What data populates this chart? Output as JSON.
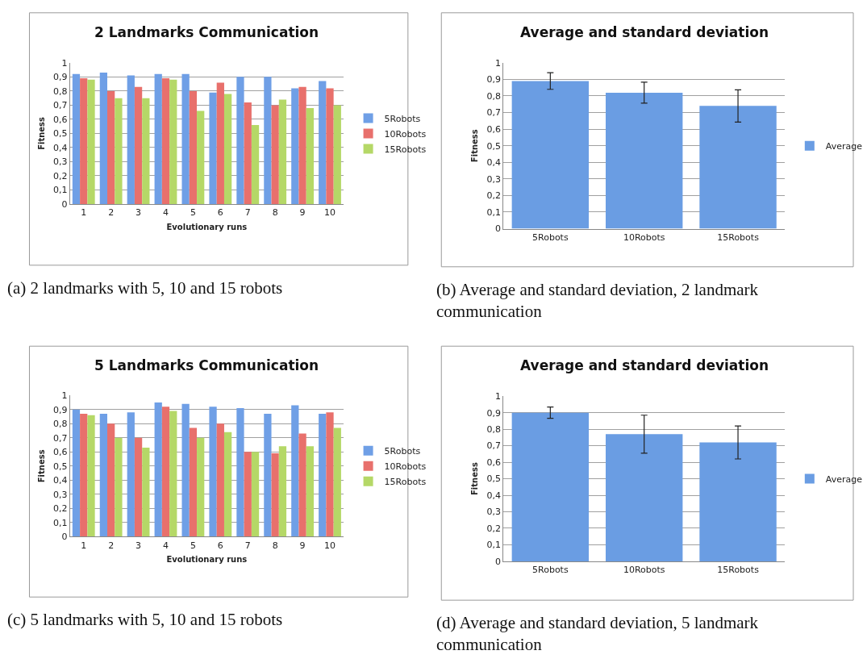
{
  "chart_data": [
    {
      "type": "bar",
      "title": "2 Landmarks Communication",
      "xlabel": "Evolutionary runs",
      "ylabel": "Fitness",
      "categories": [
        "1",
        "2",
        "3",
        "4",
        "5",
        "6",
        "7",
        "8",
        "9",
        "10"
      ],
      "series": [
        {
          "name": "5Robots",
          "color": "#6f9fe6",
          "values": [
            0.92,
            0.93,
            0.91,
            0.92,
            0.92,
            0.79,
            0.9,
            0.9,
            0.82,
            0.87
          ]
        },
        {
          "name": "10Robots",
          "color": "#e8706c",
          "values": [
            0.89,
            0.8,
            0.83,
            0.89,
            0.8,
            0.86,
            0.72,
            0.7,
            0.83,
            0.82
          ]
        },
        {
          "name": "15Robots",
          "color": "#b5d867",
          "values": [
            0.88,
            0.75,
            0.75,
            0.88,
            0.66,
            0.78,
            0.56,
            0.74,
            0.68,
            0.7
          ]
        }
      ],
      "ylim": [
        0,
        1
      ],
      "yticks": [
        0,
        {
          "value": 0.1,
          "label": "0,1"
        },
        {
          "value": 0.2,
          "label": "0,2"
        },
        {
          "value": 0.3,
          "label": "0,3"
        },
        {
          "value": 0.4,
          "label": "0,4"
        },
        {
          "value": 0.5,
          "label": "0,5"
        },
        {
          "value": 0.6,
          "label": "0,6"
        },
        {
          "value": 0.7,
          "label": "0,7"
        },
        {
          "value": 0.8,
          "label": "0,8"
        },
        {
          "value": 0.9,
          "label": "0,9"
        },
        1
      ],
      "grid": "y",
      "legend": "right",
      "annotations": [
        "(a) 2 landmarks with 5, 10 and 15 robots"
      ]
    },
    {
      "type": "bar",
      "title": "Average and standard deviation",
      "ylabel": "Fitness",
      "categories": [
        "5Robots",
        "10Robots",
        "15Robots"
      ],
      "series": [
        {
          "name": "Average",
          "color": "#6a9de3",
          "values": [
            0.89,
            0.82,
            0.74
          ],
          "errors": [
            0.05,
            0.063,
            0.097
          ]
        }
      ],
      "ylim": [
        0,
        1
      ],
      "yticks": [
        0,
        {
          "value": 0.1,
          "label": "0,1"
        },
        {
          "value": 0.2,
          "label": "0,2"
        },
        {
          "value": 0.3,
          "label": "0,3"
        },
        {
          "value": 0.4,
          "label": "0,4"
        },
        {
          "value": 0.5,
          "label": "0,5"
        },
        {
          "value": 0.6,
          "label": "0,6"
        },
        {
          "value": 0.7,
          "label": "0,7"
        },
        {
          "value": 0.8,
          "label": "0,8"
        },
        {
          "value": 0.9,
          "label": "0,9"
        },
        1
      ],
      "grid": "y",
      "legend": "right",
      "annotations": [
        "(b) Average and standard deviation, 2 landmark communication"
      ]
    },
    {
      "type": "bar",
      "title": "5 Landmarks Communication",
      "xlabel": "Evolutionary runs",
      "ylabel": "Fitness",
      "categories": [
        "1",
        "2",
        "3",
        "4",
        "5",
        "6",
        "7",
        "8",
        "9",
        "10"
      ],
      "series": [
        {
          "name": "5Robots",
          "color": "#6f9fe6",
          "values": [
            0.9,
            0.87,
            0.88,
            0.95,
            0.94,
            0.92,
            0.91,
            0.87,
            0.93,
            0.87
          ]
        },
        {
          "name": "10Robots",
          "color": "#e8706c",
          "values": [
            0.87,
            0.8,
            0.7,
            0.92,
            0.77,
            0.8,
            0.6,
            0.59,
            0.73,
            0.88
          ]
        },
        {
          "name": "15Robots",
          "color": "#b5d867",
          "values": [
            0.86,
            0.7,
            0.63,
            0.89,
            0.7,
            0.74,
            0.6,
            0.64,
            0.64,
            0.77
          ]
        }
      ],
      "ylim": [
        0,
        1
      ],
      "yticks": [
        0,
        {
          "value": 0.1,
          "label": "0,1"
        },
        {
          "value": 0.2,
          "label": "0,2"
        },
        {
          "value": 0.3,
          "label": "0,3"
        },
        {
          "value": 0.4,
          "label": "0,4"
        },
        {
          "value": 0.5,
          "label": "0,5"
        },
        {
          "value": 0.6,
          "label": "0,6"
        },
        {
          "value": 0.7,
          "label": "0,7"
        },
        {
          "value": 0.8,
          "label": "0,8"
        },
        {
          "value": 0.9,
          "label": "0,9"
        },
        1
      ],
      "grid": "y",
      "legend": "right",
      "annotations": [
        "(c) 5 landmarks with 5, 10 and 15 robots"
      ]
    },
    {
      "type": "bar",
      "title": "Average and standard deviation",
      "ylabel": "Fitness",
      "categories": [
        "5Robots",
        "10Robots",
        "15Robots"
      ],
      "series": [
        {
          "name": "Average",
          "color": "#6a9de3",
          "values": [
            0.9,
            0.77,
            0.72
          ],
          "errors": [
            0.034,
            0.115,
            0.1
          ]
        }
      ],
      "ylim": [
        0,
        1
      ],
      "yticks": [
        0,
        {
          "value": 0.1,
          "label": "0,1"
        },
        {
          "value": 0.2,
          "label": "0,2"
        },
        {
          "value": 0.3,
          "label": "0,3"
        },
        {
          "value": 0.4,
          "label": "0,4"
        },
        {
          "value": 0.5,
          "label": "0,5"
        },
        {
          "value": 0.6,
          "label": "0,6"
        },
        {
          "value": 0.7,
          "label": "0,7"
        },
        {
          "value": 0.8,
          "label": "0,8"
        },
        {
          "value": 0.9,
          "label": "0,9"
        },
        1
      ],
      "grid": "y",
      "legend": "right",
      "annotations": [
        "(d) Average and standard deviation, 5 landmark communication"
      ]
    }
  ]
}
